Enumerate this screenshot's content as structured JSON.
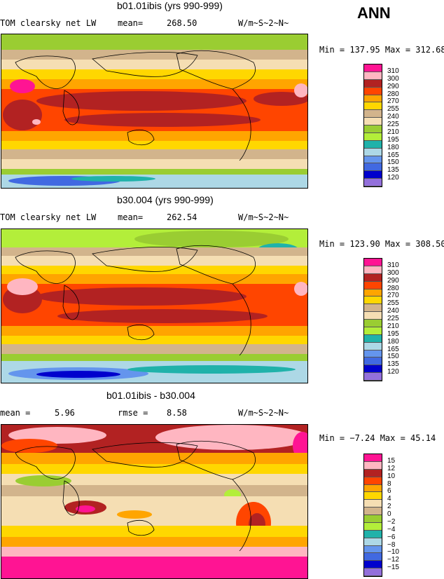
{
  "season": "ANN",
  "panels": [
    {
      "title": "b01.01ibis (yrs 990-999)",
      "left_label": "TOM clearsky net LW",
      "mid_label": "mean=",
      "mid_value": "268.50",
      "units": "W/m~S~2~N~",
      "minmax": "Min = 137.95 Max = 312.68",
      "levels": [
        "310",
        "300",
        "290",
        "280",
        "270",
        "255",
        "240",
        "225",
        "210",
        "195",
        "180",
        "165",
        "150",
        "135",
        "120"
      ]
    },
    {
      "title": "b30.004 (yrs 990-999)",
      "left_label": "TOM clearsky net LW",
      "mid_label": "mean=",
      "mid_value": "262.54",
      "units": "W/m~S~2~N~",
      "minmax": "Min = 123.90 Max = 308.50",
      "levels": [
        "310",
        "300",
        "290",
        "280",
        "270",
        "255",
        "240",
        "225",
        "210",
        "195",
        "180",
        "165",
        "150",
        "135",
        "120"
      ]
    },
    {
      "title": "b01.01ibis - b30.004",
      "left_label": "mean =",
      "left_value": "5.96",
      "mid_label": "rmse =",
      "mid_value": "8.58",
      "units": "W/m~S~2~N~",
      "minmax": "Min =  −7.24 Max =  45.14",
      "levels": [
        "15",
        "12",
        "10",
        "8",
        "6",
        "4",
        "2",
        "0",
        "−2",
        "−4",
        "−6",
        "−8",
        "−10",
        "−12",
        "−15"
      ]
    }
  ],
  "colors": {
    "abs_scale": [
      "#ff1493",
      "#ffb6c1",
      "#b22222",
      "#ff4500",
      "#ffa500",
      "#ffd700",
      "#d2b48c",
      "#f5deb3",
      "#9acd32",
      "#b3ee3a",
      "#20b2aa",
      "#add8e6",
      "#6495ed",
      "#4169e1",
      "#0000cd",
      "#9370db"
    ],
    "diff_scale": [
      "#ff1493",
      "#ffb6c1",
      "#b22222",
      "#ff4500",
      "#ffa500",
      "#ffd700",
      "#f5deb3",
      "#d2b48c",
      "#9acd32",
      "#b3ee3a",
      "#20b2aa",
      "#add8e6",
      "#6495ed",
      "#4169e1",
      "#0000cd",
      "#9370db"
    ]
  }
}
